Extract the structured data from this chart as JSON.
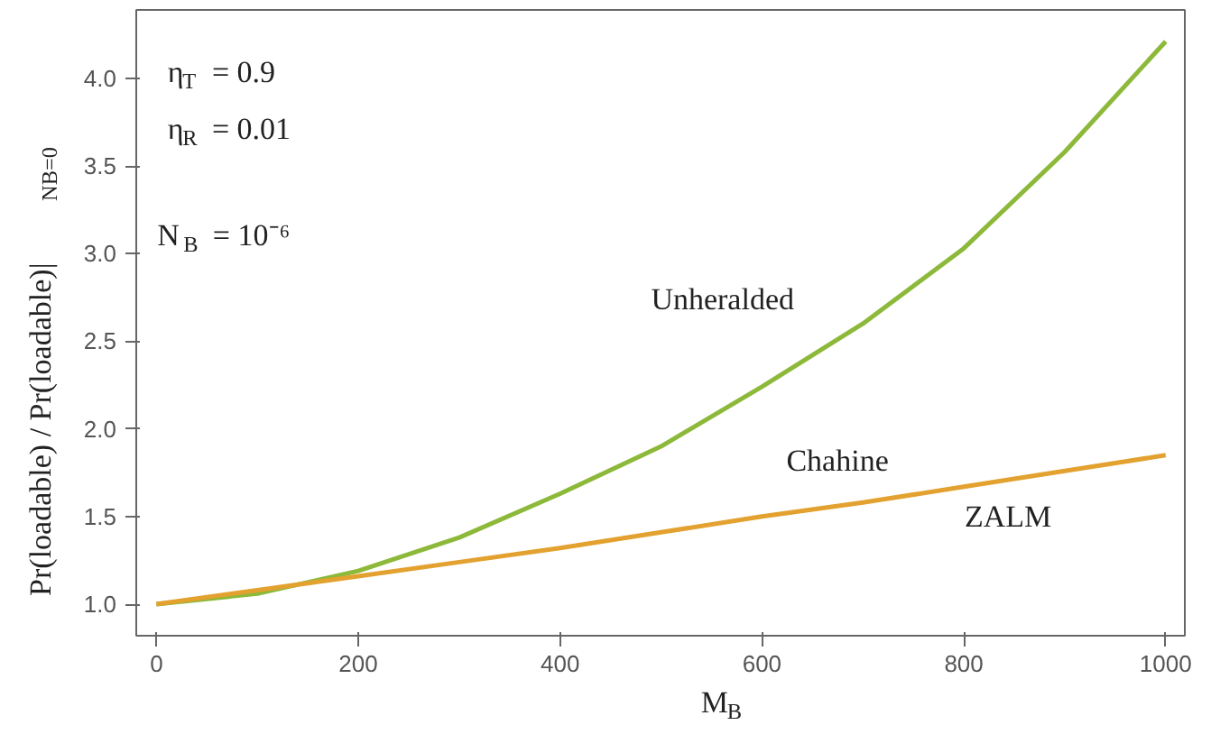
{
  "chart_data": {
    "type": "line",
    "xlabel": "M$_{B}$",
    "ylabel": "Pr(loadable) / Pr(loadable)|$_{NB=0}$",
    "x": [
      0,
      100,
      200,
      300,
      400,
      500,
      600,
      700,
      800,
      900,
      1000
    ],
    "series": [
      {
        "name": "Unheralded",
        "color": "#8db93a",
        "values": [
          1.0,
          1.06,
          1.19,
          1.38,
          1.63,
          1.9,
          2.24,
          2.6,
          3.03,
          3.58,
          4.21
        ]
      },
      {
        "color": "#e3a12f",
        "values": [
          1.0,
          1.08,
          1.16,
          1.24,
          1.32,
          1.41,
          1.5,
          1.58,
          1.67,
          1.76,
          1.85
        ]
      }
    ],
    "xlim": [
      -20,
      1019
    ],
    "ylim": [
      0.82,
      4.39
    ],
    "xticks": [
      0,
      200,
      400,
      600,
      800,
      1000
    ],
    "yticks": [
      {
        "value": 1,
        "label": "1.0"
      },
      {
        "value": 1.5,
        "label": "1.5"
      },
      {
        "value": 2,
        "label": "2.0"
      },
      {
        "value": 2.5,
        "label": "2.5"
      },
      {
        "value": 3,
        "label": "3.0"
      },
      {
        "value": 3.5,
        "label": "3.5"
      },
      {
        "value": 4,
        "label": "4.0"
      }
    ],
    "grid": false,
    "marker": "none",
    "line_style": "solid",
    "annotations": [
      "η$_{T}$ = 0.9",
      "η$_{R}$ = 0.01",
      "N$_{B}$ = 10⁻⁶",
      "Chahine",
      "ZALM"
    ]
  }
}
